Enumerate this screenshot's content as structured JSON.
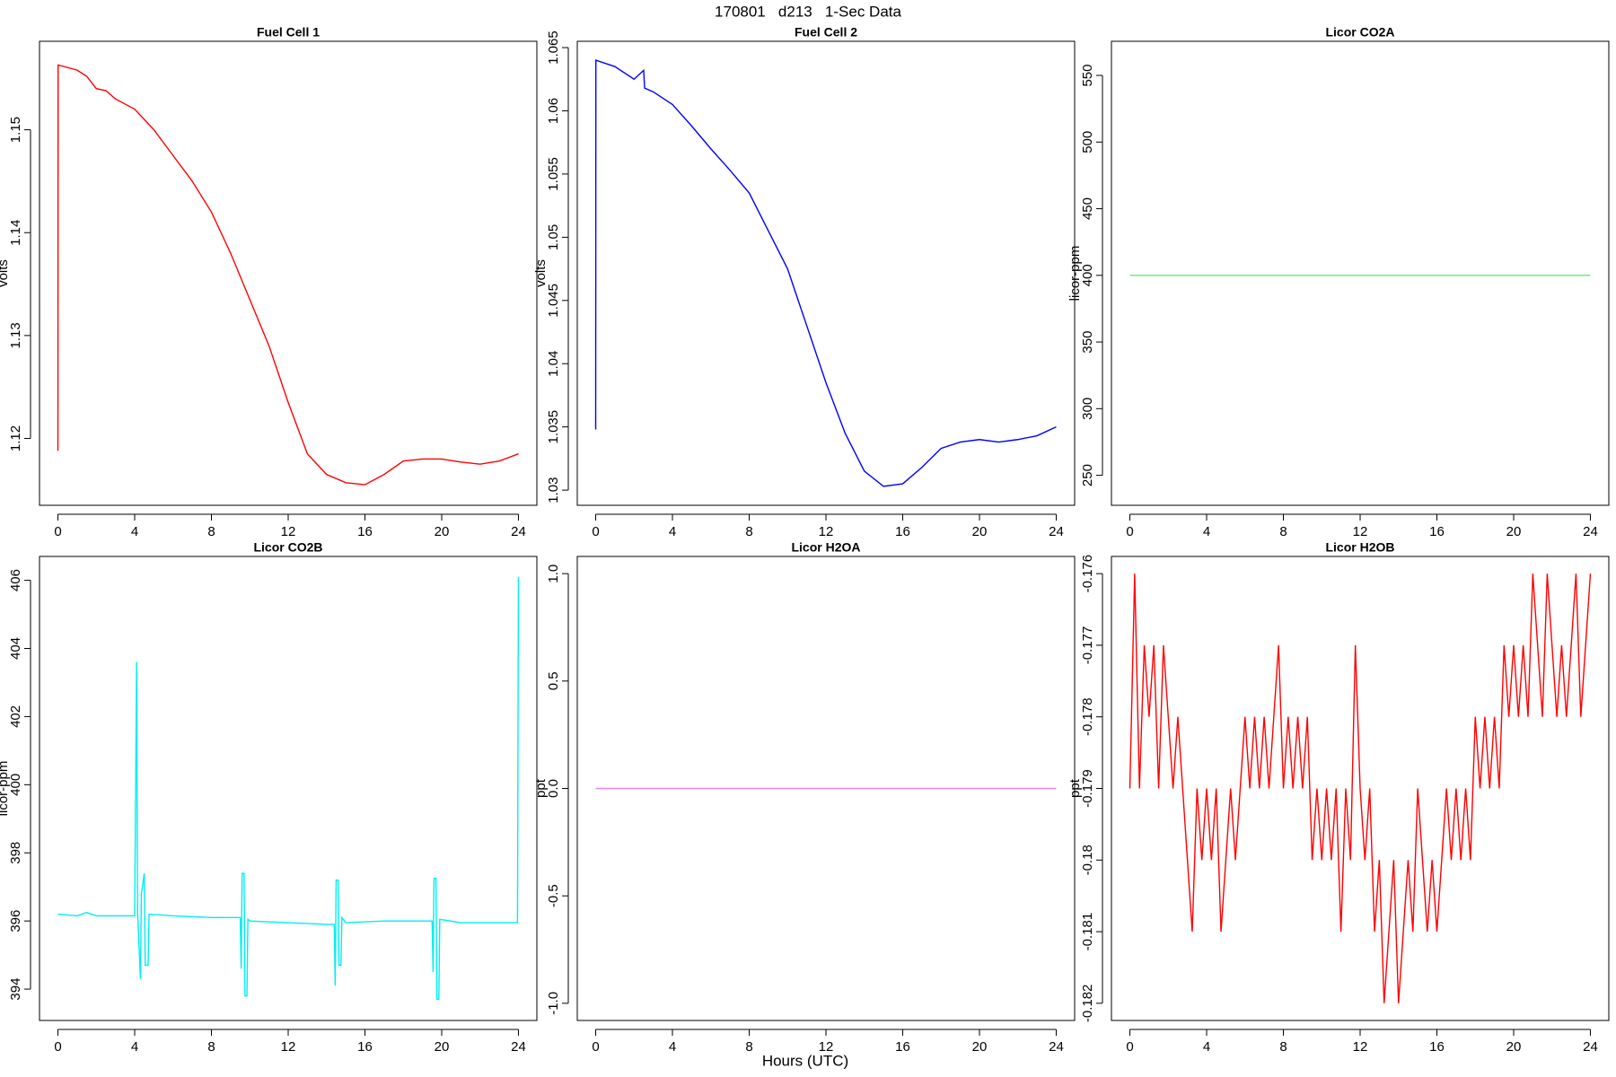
{
  "title": "170801   d213   1-Sec Data",
  "x_label": "Hours (UTC)",
  "chart_data": [
    {
      "type": "line",
      "title": "Fuel Cell 1",
      "y_label": "volts",
      "color": "#ff0000",
      "x": [
        0,
        0.01,
        1,
        1.5,
        2,
        2.5,
        3,
        4,
        5,
        6,
        7,
        8,
        9,
        10,
        11,
        12,
        13,
        14,
        15,
        16,
        17,
        18,
        19,
        20,
        21,
        22,
        23,
        24
      ],
      "values": [
        1.1188,
        1.1563,
        1.1558,
        1.1552,
        1.154,
        1.1538,
        1.153,
        1.152,
        1.15,
        1.1475,
        1.145,
        1.142,
        1.138,
        1.1335,
        1.129,
        1.1235,
        1.1185,
        1.1165,
        1.1157,
        1.1155,
        1.1165,
        1.1178,
        1.118,
        1.118,
        1.1177,
        1.1175,
        1.1178,
        1.1185
      ],
      "xlim": [
        -0.96,
        24.96
      ],
      "xticks": [
        0,
        4,
        8,
        12,
        16,
        20,
        24
      ],
      "ylim": [
        1.1135,
        1.1586
      ],
      "yticks": [
        1.12,
        1.13,
        1.14,
        1.15
      ]
    },
    {
      "type": "line",
      "title": "Fuel Cell 2",
      "y_label": "volts",
      "color": "#0000ff",
      "x": [
        0,
        0.01,
        1,
        2,
        2.5,
        2.55,
        3,
        4,
        5,
        6,
        7,
        8,
        9,
        10,
        11,
        12,
        13,
        14,
        15,
        16,
        17,
        18,
        19,
        20,
        21,
        22,
        23,
        24
      ],
      "values": [
        1.0348,
        1.064,
        1.0635,
        1.0625,
        1.0632,
        1.0618,
        1.0615,
        1.0605,
        1.0588,
        1.057,
        1.0553,
        1.0535,
        1.0505,
        1.0475,
        1.043,
        1.0385,
        1.0345,
        1.0315,
        1.0303,
        1.0305,
        1.0318,
        1.0333,
        1.0338,
        1.034,
        1.0338,
        1.034,
        1.0343,
        1.035
      ],
      "xlim": [
        -0.96,
        24.96
      ],
      "xticks": [
        0,
        4,
        8,
        12,
        16,
        20,
        24
      ],
      "ylim": [
        1.0288,
        1.0655
      ],
      "yticks": [
        1.03,
        1.035,
        1.04,
        1.045,
        1.05,
        1.055,
        1.06,
        1.065
      ]
    },
    {
      "type": "line",
      "title": "Licor CO2A",
      "y_label": "licor-ppm",
      "color": "#66ee66",
      "x": [
        0,
        24
      ],
      "values": [
        400,
        400
      ],
      "xlim": [
        -0.96,
        24.96
      ],
      "xticks": [
        0,
        4,
        8,
        12,
        16,
        20,
        24
      ],
      "ylim": [
        227.5,
        575.6
      ],
      "yticks": [
        250,
        300,
        350,
        400,
        450,
        500,
        550
      ]
    },
    {
      "type": "line",
      "title": "Licor CO2B",
      "y_label": "licor-ppm",
      "color": "#00eeee",
      "x": [
        0,
        1,
        1.5,
        2,
        3,
        4,
        4.1,
        4.15,
        4.3,
        4.35,
        4.5,
        4.55,
        4.7,
        4.75,
        6,
        8,
        9.5,
        9.55,
        9.6,
        9.7,
        9.75,
        9.85,
        9.9,
        10,
        12,
        14,
        14.4,
        14.45,
        14.5,
        14.6,
        14.65,
        14.75,
        14.8,
        15,
        17,
        19,
        19.5,
        19.55,
        19.6,
        19.7,
        19.75,
        19.85,
        19.9,
        21,
        23,
        23.95,
        24
      ],
      "values": [
        396.2,
        396.15,
        396.25,
        396.15,
        396.15,
        396.15,
        403.6,
        396.3,
        394.3,
        396.8,
        397.4,
        394.7,
        394.7,
        396.2,
        396.15,
        396.1,
        396.1,
        394.6,
        397.4,
        397.4,
        393.8,
        393.8,
        396.05,
        396,
        395.95,
        395.9,
        395.9,
        394.1,
        397.2,
        397.2,
        394.7,
        394.7,
        396.1,
        395.95,
        396,
        396,
        396,
        394.5,
        397.25,
        397.25,
        393.7,
        393.7,
        396.05,
        395.95,
        395.95,
        395.95,
        406.1
      ],
      "xlim": [
        -0.96,
        24.96
      ],
      "xticks": [
        0,
        4,
        8,
        12,
        16,
        20,
        24
      ],
      "ylim": [
        393.08,
        406.7
      ],
      "yticks": [
        394,
        396,
        398,
        400,
        402,
        404,
        406
      ]
    },
    {
      "type": "line",
      "title": "Licor H2OA",
      "y_label": "ppt",
      "color": "#ee82ee",
      "x": [
        0,
        24
      ],
      "values": [
        0,
        0
      ],
      "xlim": [
        -0.96,
        24.96
      ],
      "xticks": [
        0,
        4,
        8,
        12,
        16,
        20,
        24
      ],
      "ylim": [
        -1.08,
        1.08
      ],
      "yticks": [
        {
          "value": -1,
          "label": "-1.0"
        },
        -0.5,
        {
          "value": 0,
          "label": "0.0"
        },
        0.5,
        {
          "value": 1,
          "label": "1.0"
        }
      ]
    },
    {
      "type": "line",
      "title": "Licor H2OB",
      "y_label": "ppt",
      "color": "#ff0000",
      "x": [
        0,
        0.25,
        0.5,
        0.75,
        1,
        1.25,
        1.5,
        1.75,
        2,
        2.25,
        2.5,
        2.75,
        3,
        3.25,
        3.5,
        3.75,
        4,
        4.25,
        4.5,
        4.75,
        5,
        5.25,
        5.5,
        5.75,
        6,
        6.25,
        6.5,
        6.75,
        7,
        7.25,
        7.5,
        7.75,
        8,
        8.25,
        8.5,
        8.75,
        9,
        9.25,
        9.5,
        9.75,
        10,
        10.25,
        10.5,
        10.75,
        11,
        11.25,
        11.5,
        11.75,
        12,
        12.25,
        12.5,
        12.75,
        13,
        13.25,
        13.5,
        13.75,
        14,
        14.25,
        14.5,
        14.75,
        15,
        15.25,
        15.5,
        15.75,
        16,
        16.25,
        16.5,
        16.75,
        17,
        17.25,
        17.5,
        17.75,
        18,
        18.25,
        18.5,
        18.75,
        19,
        19.25,
        19.5,
        19.75,
        20,
        20.25,
        20.5,
        20.75,
        21,
        21.25,
        21.5,
        21.75,
        22,
        22.25,
        22.5,
        22.75,
        23,
        23.25,
        23.5,
        23.75,
        24
      ],
      "values": [
        -0.179,
        -0.176,
        -0.179,
        -0.177,
        -0.178,
        -0.177,
        -0.179,
        -0.177,
        -0.178,
        -0.179,
        -0.178,
        -0.179,
        -0.18,
        -0.181,
        -0.179,
        -0.18,
        -0.179,
        -0.18,
        -0.179,
        -0.181,
        -0.18,
        -0.179,
        -0.18,
        -0.179,
        -0.178,
        -0.179,
        -0.178,
        -0.179,
        -0.178,
        -0.179,
        -0.178,
        -0.177,
        -0.179,
        -0.178,
        -0.179,
        -0.178,
        -0.179,
        -0.178,
        -0.18,
        -0.179,
        -0.18,
        -0.179,
        -0.18,
        -0.179,
        -0.181,
        -0.179,
        -0.18,
        -0.177,
        -0.179,
        -0.18,
        -0.179,
        -0.181,
        -0.18,
        -0.182,
        -0.181,
        -0.18,
        -0.182,
        -0.181,
        -0.18,
        -0.181,
        -0.179,
        -0.18,
        -0.181,
        -0.18,
        -0.181,
        -0.18,
        -0.179,
        -0.18,
        -0.179,
        -0.18,
        -0.179,
        -0.18,
        -0.178,
        -0.179,
        -0.178,
        -0.179,
        -0.178,
        -0.179,
        -0.177,
        -0.178,
        -0.177,
        -0.178,
        -0.177,
        -0.178,
        -0.176,
        -0.177,
        -0.178,
        -0.176,
        -0.177,
        -0.178,
        -0.177,
        -0.178,
        -0.177,
        -0.176,
        -0.178,
        -0.177,
        -0.176
      ],
      "xlim": [
        -0.96,
        24.96
      ],
      "xticks": [
        0,
        4,
        8,
        12,
        16,
        20,
        24
      ],
      "ylim": [
        -0.18224,
        -0.17576
      ],
      "yticks": [
        -0.182,
        -0.181,
        -0.18,
        -0.179,
        -0.178,
        -0.177,
        -0.176
      ]
    }
  ]
}
